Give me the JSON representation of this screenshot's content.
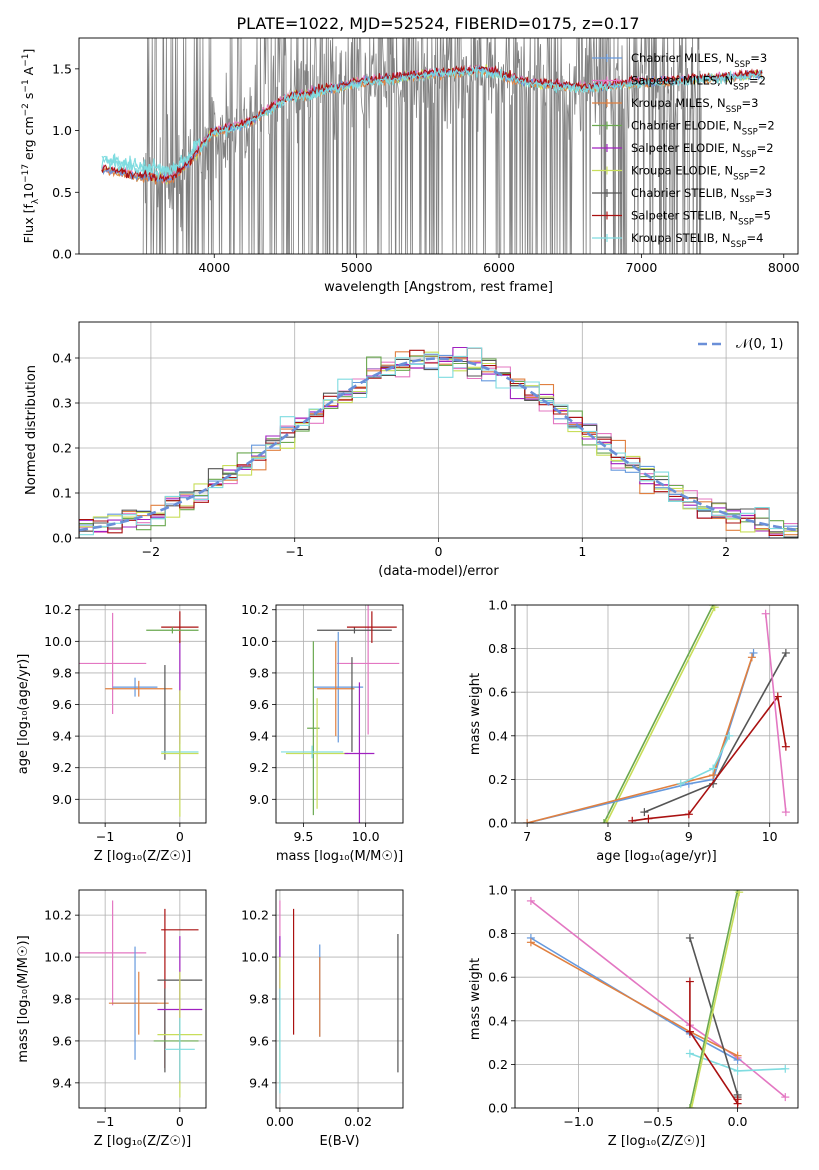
{
  "figure": {
    "title": "PLATE=1022, MJD=52524, FIBERID=0175, z=0.17"
  },
  "colors": {
    "Chabrier MILES": "#6699dd",
    "Salpeter MILES": "#e377c2",
    "Kroupa MILES": "#e08040",
    "Chabrier ELODIE": "#6aa84f",
    "Salpeter ELODIE": "#a020c0",
    "Kroupa ELODIE": "#c8de5a",
    "Chabrier STELIB": "#555555",
    "Salpeter STELIB": "#aa1111",
    "Kroupa STELIB": "#7fdce0",
    "data": "#808080",
    "normal": "#6a8fd8",
    "grid": "#b0b0b0"
  },
  "chart_data": [
    {
      "id": "spectrum",
      "type": "line",
      "xlabel": "wavelength [Angstrom, rest frame]",
      "ylabel_parts": [
        "Flux [f",
        "λ",
        "10",
        "−17",
        " erg cm",
        "−2",
        " s",
        "−1",
        " A",
        "−1",
        "]"
      ],
      "xlim": [
        3050,
        8100
      ],
      "ylim": [
        0,
        1.75
      ],
      "xticks": [
        4000,
        5000,
        6000,
        7000,
        8000
      ],
      "yticks": [
        0.0,
        0.5,
        1.0,
        1.5
      ],
      "ytick_labels": [
        "0.0",
        "0.5",
        "1.0",
        "1.5"
      ],
      "legend": [
        {
          "name": "Chabrier MILES",
          "nssp": "3"
        },
        {
          "name": "Salpeter MILES",
          "nssp": "2"
        },
        {
          "name": "Kroupa MILES",
          "nssp": "3"
        },
        {
          "name": "Chabrier ELODIE",
          "nssp": "2"
        },
        {
          "name": "Salpeter ELODIE",
          "nssp": "2"
        },
        {
          "name": "Kroupa ELODIE",
          "nssp": "2"
        },
        {
          "name": "Chabrier STELIB",
          "nssp": "3"
        },
        {
          "name": "Salpeter STELIB",
          "nssp": "5"
        },
        {
          "name": "Kroupa STELIB",
          "nssp": "4"
        }
      ],
      "data_range": [
        3500,
        7420
      ],
      "model_range": [
        3210,
        7850
      ],
      "continuum_knots": [
        [
          3220,
          0.68
        ],
        [
          3450,
          0.62
        ],
        [
          3700,
          0.6
        ],
        [
          3820,
          0.72
        ],
        [
          3980,
          0.97
        ],
        [
          4250,
          1.06
        ],
        [
          4500,
          1.25
        ],
        [
          5000,
          1.38
        ],
        [
          5500,
          1.45
        ],
        [
          5900,
          1.48
        ],
        [
          6200,
          1.38
        ],
        [
          6600,
          1.34
        ],
        [
          7000,
          1.38
        ],
        [
          7400,
          1.41
        ],
        [
          7850,
          1.45
        ]
      ]
    },
    {
      "id": "residual-histogram",
      "type": "line",
      "xlabel": "(data-model)/error",
      "ylabel": "Normed distribution",
      "xlim": [
        -2.5,
        2.5
      ],
      "ylim": [
        0,
        0.48
      ],
      "xticks": [
        -2,
        -1,
        0,
        1,
        2
      ],
      "xtick_labels": [
        "−2",
        "−1",
        "0",
        "1",
        "2"
      ],
      "yticks": [
        0.0,
        0.1,
        0.2,
        0.3,
        0.4
      ],
      "ytick_labels": [
        "0.0",
        "0.1",
        "0.2",
        "0.3",
        "0.4"
      ],
      "bin_width": 0.1,
      "legend": "𝒩(0, 1)",
      "series_order": [
        "Chabrier MILES",
        "Salpeter MILES",
        "Kroupa MILES",
        "Chabrier ELODIE",
        "Salpeter ELODIE",
        "Kroupa ELODIE",
        "Chabrier STELIB",
        "Salpeter STELIB",
        "Kroupa STELIB"
      ]
    },
    {
      "id": "age-vs-Z",
      "type": "scatter",
      "xlabel": "Z [log₁₀(Z/Z☉)]",
      "ylabel": "age  [log₁₀(age/yr)]",
      "xlim": [
        -1.35,
        0.35
      ],
      "ylim": [
        8.85,
        10.23
      ],
      "xticks": [
        -1,
        0
      ],
      "xtick_labels": [
        "−1",
        "0"
      ],
      "yticks": [
        9.0,
        9.2,
        9.4,
        9.6,
        9.8,
        10.0,
        10.2
      ],
      "ytick_labels": [
        "9.0",
        "9.2",
        "9.4",
        "9.6",
        "9.8",
        "10.0",
        "10.2"
      ],
      "series": [
        {
          "name": "Salpeter MILES",
          "x": -0.9,
          "xerr": 0.45,
          "y": 9.86,
          "yerr": 0.32
        },
        {
          "name": "Chabrier MILES",
          "x": -0.6,
          "xerr": 0.3,
          "y": 9.71,
          "yerr": 0.06
        },
        {
          "name": "Kroupa MILES",
          "x": -0.55,
          "xerr": 0.45,
          "y": 9.7,
          "yerr": 0.05
        },
        {
          "name": "Chabrier STELIB",
          "x": -0.2,
          "xerr": 0.0,
          "y": 9.55,
          "yerr": 0.3
        },
        {
          "name": "Salpeter ELODIE",
          "x": 0.0,
          "xerr": 0.0,
          "y": 9.5,
          "yerr": 0.5
        },
        {
          "name": "Kroupa STELIB",
          "x": 0.0,
          "xerr": 0.25,
          "y": 9.3,
          "yerr": 0.05
        },
        {
          "name": "Kroupa ELODIE",
          "x": 0.0,
          "xerr": 0.25,
          "y": 9.29,
          "yerr": 0.4
        },
        {
          "name": "Salpeter STELIB",
          "x": 0.0,
          "xerr": 0.25,
          "y": 10.09,
          "yerr": 0.1
        },
        {
          "name": "Chabrier ELODIE",
          "x": -0.1,
          "xerr": 0.35,
          "y": 10.07,
          "yerr": 0.02
        }
      ]
    },
    {
      "id": "age-vs-mass",
      "type": "scatter",
      "xlabel": "mass [log₁₀(M/M☉)]",
      "ylabel": "",
      "xlim": [
        9.28,
        10.3
      ],
      "ylim": [
        8.85,
        10.23
      ],
      "xticks": [
        9.5,
        10.0
      ],
      "xtick_labels": [
        "9.5",
        "10.0"
      ],
      "yticks": [
        9.0,
        9.2,
        9.4,
        9.6,
        9.8,
        10.0,
        10.2
      ],
      "ytick_labels": [
        "9.0",
        "9.2",
        "9.4",
        "9.6",
        "9.8",
        "10.0",
        "10.2"
      ],
      "series": [
        {
          "name": "Salpeter MILES",
          "x": 10.02,
          "xerr": 0.25,
          "y": 9.86,
          "yerr": 0.45
        },
        {
          "name": "Chabrier MILES",
          "x": 9.78,
          "xerr": 0.2,
          "y": 9.71,
          "yerr": 0.35
        },
        {
          "name": "Kroupa MILES",
          "x": 9.76,
          "xerr": 0.15,
          "y": 9.7,
          "yerr": 0.3
        },
        {
          "name": "Chabrier ELODIE",
          "x": 9.58,
          "xerr": 0.05,
          "y": 9.45,
          "yerr": 0.55
        },
        {
          "name": "Kroupa ELODIE",
          "x": 9.61,
          "xerr": 0.25,
          "y": 9.29,
          "yerr": 0.35
        },
        {
          "name": "Kroupa STELIB",
          "x": 9.57,
          "xerr": 0.25,
          "y": 9.3,
          "yerr": 0.04
        },
        {
          "name": "Salpeter ELODIE",
          "x": 9.95,
          "xerr": 0.12,
          "y": 9.29,
          "yerr": 0.45
        },
        {
          "name": "Chabrier STELIB",
          "x": 9.89,
          "xerr": 0.0,
          "y": 9.6,
          "yerr": 0.3
        },
        {
          "name": "Chabrier STELIB",
          "x": 9.91,
          "xerr": 0.3,
          "y": 10.07,
          "yerr": 0.02
        },
        {
          "name": "Salpeter STELIB",
          "x": 10.05,
          "xerr": 0.2,
          "y": 10.09,
          "yerr": 0.1
        }
      ]
    },
    {
      "id": "massweight-vs-age",
      "type": "line",
      "xlabel": "age  [log₁₀(age/yr)]",
      "ylabel": "mass weight",
      "xlim": [
        6.85,
        10.35
      ],
      "ylim": [
        0,
        1.0
      ],
      "xticks": [
        7,
        8,
        9,
        10
      ],
      "xtick_labels": [
        "7",
        "8",
        "9",
        "10"
      ],
      "yticks": [
        0.0,
        0.2,
        0.4,
        0.6,
        0.8,
        1.0
      ],
      "ytick_labels": [
        "0.0",
        "0.2",
        "0.4",
        "0.6",
        "0.8",
        "1.0"
      ],
      "series": [
        {
          "name": "Chabrier ELODIE",
          "x": [
            7.95,
            9.3
          ],
          "y": [
            0.0,
            1.0
          ]
        },
        {
          "name": "Kroupa ELODIE",
          "x": [
            7.98,
            9.32
          ],
          "y": [
            0.0,
            0.99
          ]
        },
        {
          "name": "Chabrier MILES",
          "x": [
            7.0,
            9.0,
            9.3,
            9.8
          ],
          "y": [
            0.0,
            0.18,
            0.2,
            0.78
          ]
        },
        {
          "name": "Kroupa MILES",
          "x": [
            7.0,
            9.3,
            9.78
          ],
          "y": [
            0.0,
            0.22,
            0.76
          ]
        },
        {
          "name": "Kroupa STELIB",
          "x": [
            8.9,
            9.3,
            9.5
          ],
          "y": [
            0.18,
            0.25,
            0.4
          ]
        },
        {
          "name": "Chabrier STELIB",
          "x": [
            8.45,
            9.3,
            10.2
          ],
          "y": [
            0.05,
            0.18,
            0.78
          ]
        },
        {
          "name": "Salpeter STELIB",
          "x": [
            8.3,
            8.5,
            9.0,
            10.1,
            10.2
          ],
          "y": [
            0.01,
            0.02,
            0.04,
            0.58,
            0.35
          ]
        },
        {
          "name": "Salpeter MILES",
          "x": [
            9.95,
            10.2
          ],
          "y": [
            0.96,
            0.05
          ]
        }
      ]
    },
    {
      "id": "mass-vs-Z",
      "type": "scatter",
      "xlabel": "Z [log₁₀(Z/Z☉)]",
      "ylabel": "mass [log₁₀(M/M☉)]",
      "xlim": [
        -1.35,
        0.35
      ],
      "ylim": [
        9.28,
        10.32
      ],
      "xticks": [
        -1,
        0
      ],
      "xtick_labels": [
        "−1",
        "0"
      ],
      "yticks": [
        9.4,
        9.6,
        9.8,
        10.0,
        10.2
      ],
      "ytick_labels": [
        "9.4",
        "9.6",
        "9.8",
        "10.0",
        "10.2"
      ],
      "series": [
        {
          "name": "Salpeter MILES",
          "x": -0.9,
          "xerr": 0.45,
          "y": 10.02,
          "yerr": 0.25
        },
        {
          "name": "Chabrier MILES",
          "x": -0.6,
          "xerr": 0.3,
          "y": 9.78,
          "yerr": 0.27
        },
        {
          "name": "Kroupa MILES",
          "x": -0.55,
          "xerr": 0.4,
          "y": 9.78,
          "yerr": 0.15
        },
        {
          "name": "Salpeter STELIB",
          "x": -0.2,
          "xerr": 0.0,
          "y": 9.85,
          "yerr": 0.38
        },
        {
          "name": "Chabrier STELIB",
          "x": -0.2,
          "xerr": 0.0,
          "y": 9.65,
          "yerr": 0.2
        },
        {
          "name": "Salpeter STELIB",
          "x": 0.0,
          "xerr": 0.25,
          "y": 10.13,
          "yerr": 0.0
        },
        {
          "name": "Chabrier STELIB",
          "x": 0.0,
          "xerr": 0.3,
          "y": 9.89,
          "yerr": 0.0
        },
        {
          "name": "Salpeter ELODIE",
          "x": 0.0,
          "xerr": 0.3,
          "y": 9.75,
          "yerr": 0.35
        },
        {
          "name": "Kroupa ELODIE",
          "x": 0.0,
          "xerr": 0.3,
          "y": 9.63,
          "yerr": 0.3
        },
        {
          "name": "Chabrier ELODIE",
          "x": -0.05,
          "xerr": 0.3,
          "y": 9.6,
          "yerr": 0.0
        },
        {
          "name": "Kroupa STELIB",
          "x": 0.0,
          "xerr": 0.2,
          "y": 9.56,
          "yerr": 0.15
        }
      ]
    },
    {
      "id": "mass-vs-EBV",
      "type": "scatter",
      "xlabel": "E(B-V)",
      "ylabel": "",
      "xlim": [
        -0.001,
        0.0315
      ],
      "ylim": [
        9.28,
        10.32
      ],
      "xticks": [
        0.0,
        0.02
      ],
      "xtick_labels": [
        "0.00",
        "0.02"
      ],
      "yticks": [
        9.4,
        9.6,
        9.8,
        10.0,
        10.2
      ],
      "ytick_labels": [
        "9.4",
        "9.6",
        "9.8",
        "10.0",
        "10.2"
      ],
      "series": [
        {
          "name": "Salpeter MILES",
          "x": 0.0,
          "y": 10.0,
          "yerr": 0.27
        },
        {
          "name": "Salpeter ELODIE",
          "x": 0.0,
          "y": 9.9,
          "yerr": 0.2
        },
        {
          "name": "Kroupa ELODIE",
          "x": 0.0,
          "y": 9.7,
          "yerr": 0.3
        },
        {
          "name": "Kroupa STELIB",
          "x": 0.0,
          "y": 9.6,
          "yerr": 0.25
        },
        {
          "name": "Salpeter STELIB",
          "x": 0.0035,
          "y": 9.93,
          "yerr": 0.3
        },
        {
          "name": "Chabrier MILES",
          "x": 0.0102,
          "y": 9.84,
          "yerr": 0.22
        },
        {
          "name": "Kroupa MILES",
          "x": 0.0102,
          "y": 9.81,
          "yerr": 0.19
        },
        {
          "name": "Chabrier STELIB",
          "x": 0.0302,
          "y": 9.78,
          "yerr": 0.33
        }
      ]
    },
    {
      "id": "massweight-vs-Z",
      "type": "line",
      "xlabel": "Z [log₁₀(Z/Z☉)]",
      "ylabel": "mass weight",
      "xlim": [
        -1.4,
        0.38
      ],
      "ylim": [
        0,
        1.0
      ],
      "xticks": [
        -1.0,
        -0.5,
        0.0
      ],
      "xtick_labels": [
        "−1.0",
        "−0.5",
        "0.0"
      ],
      "yticks": [
        0.0,
        0.2,
        0.4,
        0.6,
        0.8,
        1.0
      ],
      "ytick_labels": [
        "0.0",
        "0.2",
        "0.4",
        "0.6",
        "0.8",
        "1.0"
      ],
      "series": [
        {
          "name": "Salpeter MILES",
          "x": [
            -1.3,
            -0.3,
            0.0,
            0.3
          ],
          "y": [
            0.95,
            0.38,
            0.23,
            0.05
          ]
        },
        {
          "name": "Chabrier MILES",
          "x": [
            -1.3,
            -0.3,
            0.0
          ],
          "y": [
            0.78,
            0.34,
            0.22
          ]
        },
        {
          "name": "Kroupa MILES",
          "x": [
            -1.3,
            -0.3,
            0.0
          ],
          "y": [
            0.76,
            0.35,
            0.24
          ]
        },
        {
          "name": "Kroupa STELIB",
          "x": [
            -0.3,
            0.0,
            0.3
          ],
          "y": [
            0.25,
            0.17,
            0.18
          ]
        },
        {
          "name": "Chabrier STELIB",
          "x": [
            -0.3,
            0.0,
            0.0
          ],
          "y": [
            0.78,
            0.06,
            0.05
          ]
        },
        {
          "name": "Salpeter STELIB",
          "x": [
            -0.3,
            -0.3,
            0.0,
            0.0
          ],
          "y": [
            0.58,
            0.35,
            0.02,
            0.04
          ]
        },
        {
          "name": "Chabrier ELODIE",
          "x": [
            -0.3,
            0.0
          ],
          "y": [
            0.0,
            1.0
          ]
        },
        {
          "name": "Kroupa ELODIE",
          "x": [
            -0.29,
            0.01
          ],
          "y": [
            0.0,
            0.99
          ]
        }
      ]
    }
  ]
}
